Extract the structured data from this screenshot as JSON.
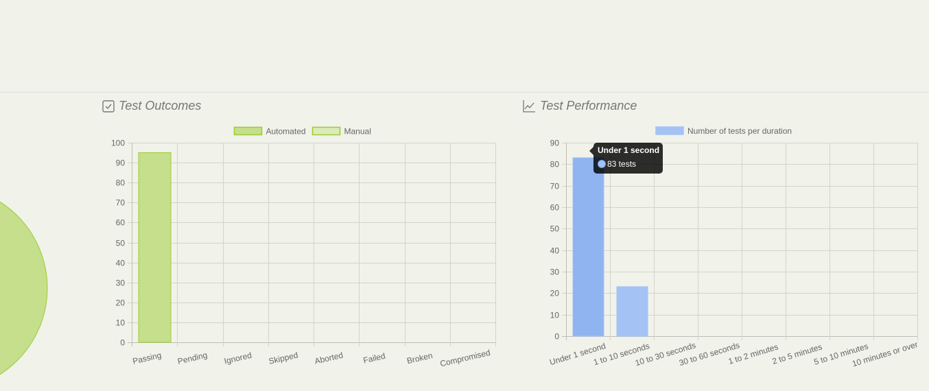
{
  "outcomes": {
    "title": "Test Outcomes",
    "icon": "checkbox-icon",
    "legend": [
      "Automated",
      "Manual"
    ]
  },
  "performance": {
    "title": "Test Performance",
    "icon": "line-chart-icon",
    "legend": [
      "Number of tests per duration"
    ],
    "tooltip": {
      "title": "Under 1 second",
      "body": "83 tests"
    }
  },
  "colors": {
    "background": "#f1f2ea",
    "automated_fill": "#c5df8c",
    "automated_border": "#9acd32",
    "manual_fill": "#dcebb8",
    "duration_fill": "#8fb4f0",
    "duration_fill_light": "#a4c2f4",
    "grid": "#d3d3cb"
  },
  "chart_data": [
    {
      "type": "bar",
      "title": "Test Outcomes",
      "categories": [
        "Passing",
        "Pending",
        "Ignored",
        "Skipped",
        "Aborted",
        "Failed",
        "Broken",
        "Compromised"
      ],
      "series": [
        {
          "name": "Automated",
          "values": [
            95,
            0,
            0,
            0,
            0,
            0,
            0,
            0
          ]
        },
        {
          "name": "Manual",
          "values": [
            0,
            0,
            0,
            0,
            0,
            0,
            0,
            0
          ]
        }
      ],
      "xlabel": "",
      "ylabel": "",
      "ylim": [
        0,
        100
      ],
      "yticks": [
        0,
        10,
        20,
        30,
        40,
        50,
        60,
        70,
        80,
        90,
        100
      ],
      "grid": true,
      "legend_position": "top"
    },
    {
      "type": "bar",
      "title": "Test Performance",
      "categories": [
        "Under 1 second",
        "1 to 10 seconds",
        "10 to 30 seconds",
        "30 to 60 seconds",
        "1 to 2 minutes",
        "2 to 5 minutes",
        "5 to 10 minutes",
        "10 minutes or over"
      ],
      "series": [
        {
          "name": "Number of tests per duration",
          "values": [
            83,
            23,
            0,
            0,
            0,
            0,
            0,
            0
          ]
        }
      ],
      "xlabel": "",
      "ylabel": "",
      "ylim": [
        0,
        90
      ],
      "yticks": [
        0,
        10,
        20,
        30,
        40,
        50,
        60,
        70,
        80,
        90
      ],
      "grid": true,
      "legend_position": "top",
      "annotations": [
        "Tooltip: Under 1 second — 83 tests"
      ]
    }
  ]
}
